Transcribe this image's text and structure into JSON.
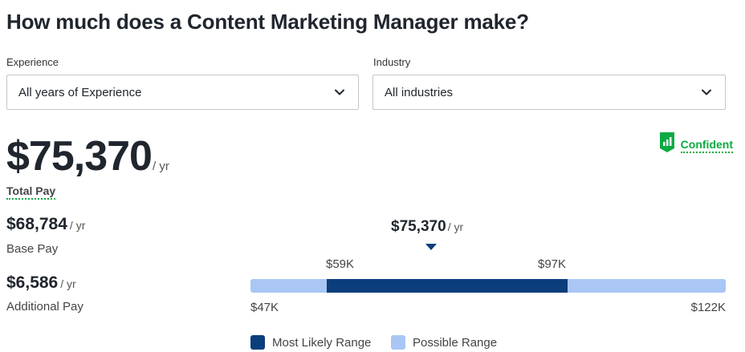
{
  "title": "How much does a Content Marketing Manager make?",
  "filters": {
    "experience": {
      "label": "Experience",
      "value": "All years of Experience",
      "icon": "chevron-down-icon"
    },
    "industry": {
      "label": "Industry",
      "value": "All industries",
      "icon": "chevron-down-icon"
    }
  },
  "confidence": {
    "label": "Confident",
    "icon": "signal-bars-icon",
    "color": "#0caa41"
  },
  "total_pay": {
    "value": "$75,370",
    "unit": "/ yr",
    "label": "Total Pay"
  },
  "base_pay": {
    "value": "$68,784",
    "unit": "/ yr",
    "label": "Base Pay"
  },
  "additional_pay": {
    "value": "$6,586",
    "unit": "/ yr",
    "label": "Additional Pay"
  },
  "range": {
    "median_label": "$75,370",
    "median_unit": "/ yr",
    "likely_low_label": "$59K",
    "likely_high_label": "$97K",
    "min_label": "$47K",
    "max_label": "$122K",
    "min": 47000,
    "max": 122000,
    "likely_low": 59000,
    "likely_high": 97000,
    "median": 75370,
    "colors": {
      "likely": "#0b3e7c",
      "possible": "#a9c6f4"
    }
  },
  "legend": {
    "likely": "Most Likely Range",
    "possible": "Possible Range"
  }
}
